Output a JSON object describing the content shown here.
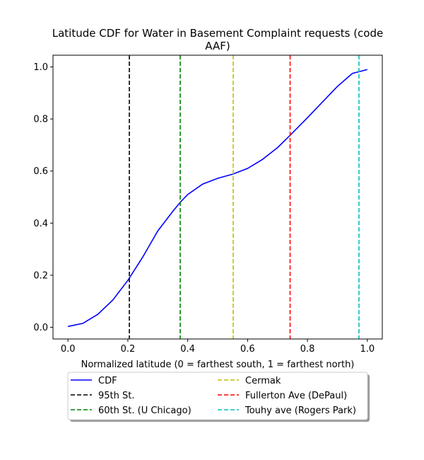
{
  "chart_data": {
    "type": "line",
    "title_line1": "Latitude CDF for Water in Basement Complaint  requests (code",
    "title_line2": "AAF)",
    "xlabel": "Normalized latitude (0 = farthest south, 1 = farthest north)",
    "ylabel": "",
    "xlim": [
      -0.05,
      1.05
    ],
    "ylim": [
      -0.045,
      1.045
    ],
    "xticks": [
      0.0,
      0.2,
      0.4,
      0.6,
      0.8,
      1.0
    ],
    "xtick_labels": [
      "0.0",
      "0.2",
      "0.4",
      "0.6",
      "0.8",
      "1.0"
    ],
    "yticks": [
      0.0,
      0.2,
      0.4,
      0.6,
      0.8,
      1.0
    ],
    "ytick_labels": [
      "0.0",
      "0.2",
      "0.4",
      "0.6",
      "0.8",
      "1.0"
    ],
    "grid": false,
    "legend_placement": "bottom-center below plot, two columns",
    "series": [
      {
        "name": "CDF",
        "color": "#0000ff",
        "style": "solid",
        "x": [
          0.0,
          0.05,
          0.1,
          0.15,
          0.2,
          0.25,
          0.3,
          0.35,
          0.375,
          0.4,
          0.45,
          0.5,
          0.55,
          0.6,
          0.65,
          0.7,
          0.74,
          0.8,
          0.85,
          0.9,
          0.95,
          1.0
        ],
        "y": [
          0.003,
          0.015,
          0.05,
          0.105,
          0.18,
          0.27,
          0.37,
          0.445,
          0.48,
          0.51,
          0.55,
          0.572,
          0.588,
          0.61,
          0.645,
          0.69,
          0.735,
          0.805,
          0.865,
          0.925,
          0.975,
          0.99
        ]
      }
    ],
    "vlines": [
      {
        "name": "95th St.",
        "x": 0.205,
        "color": "#000000"
      },
      {
        "name": "60th St. (U Chicago)",
        "x": 0.375,
        "color": "#008000"
      },
      {
        "name": "Cermak",
        "x": 0.552,
        "color": "#bfbf00"
      },
      {
        "name": "Fullerton Ave (DePaul)",
        "x": 0.742,
        "color": "#ff0000"
      },
      {
        "name": "Touhy ave (Rogers Park)",
        "x": 0.972,
        "color": "#00bfbf"
      }
    ]
  }
}
